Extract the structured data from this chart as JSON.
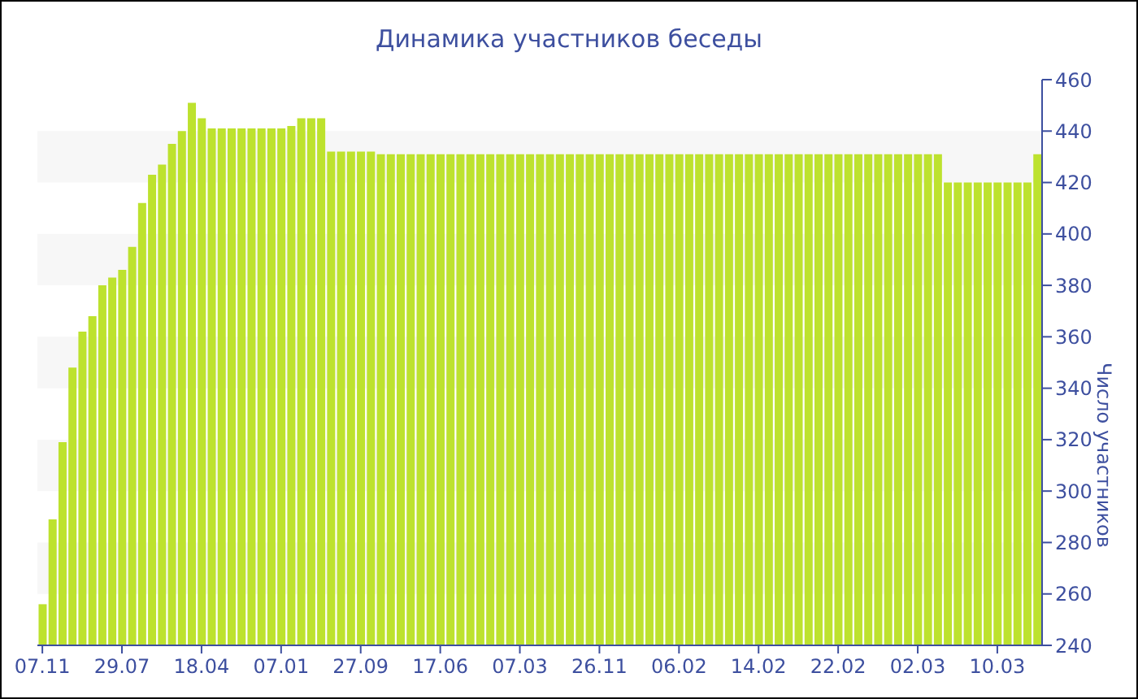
{
  "chart_data": {
    "type": "bar",
    "title": "Динамика участников беседы",
    "ylabel": "Число участников",
    "categories": [
      "07.11",
      null,
      null,
      null,
      null,
      null,
      null,
      null,
      "29.07",
      null,
      null,
      null,
      null,
      null,
      null,
      null,
      "18.04",
      null,
      null,
      null,
      null,
      null,
      null,
      null,
      "07.01",
      null,
      null,
      null,
      null,
      null,
      null,
      null,
      "27.09",
      null,
      null,
      null,
      null,
      null,
      null,
      null,
      "17.06",
      null,
      null,
      null,
      null,
      null,
      null,
      null,
      "07.03",
      null,
      null,
      null,
      null,
      null,
      null,
      null,
      "26.11",
      null,
      null,
      null,
      null,
      null,
      null,
      null,
      "06.02",
      null,
      null,
      null,
      null,
      null,
      null,
      null,
      "14.02",
      null,
      null,
      null,
      null,
      null,
      null,
      null,
      "22.02",
      null,
      null,
      null,
      null,
      null,
      null,
      null,
      "02.03",
      null,
      null,
      null,
      null,
      null,
      null,
      null,
      "10.03",
      null,
      null,
      null,
      null
    ],
    "values": [
      256,
      289,
      319,
      348,
      362,
      368,
      380,
      383,
      386,
      395,
      412,
      423,
      427,
      435,
      440,
      451,
      445,
      441,
      441,
      441,
      441,
      441,
      441,
      441,
      441,
      442,
      445,
      445,
      445,
      432,
      432,
      432,
      432,
      432,
      431,
      431,
      431,
      431,
      431,
      431,
      431,
      431,
      431,
      431,
      431,
      431,
      431,
      431,
      431,
      431,
      431,
      431,
      431,
      431,
      431,
      431,
      431,
      431,
      431,
      431,
      431,
      431,
      431,
      431,
      431,
      431,
      431,
      431,
      431,
      431,
      431,
      431,
      431,
      431,
      431,
      431,
      431,
      431,
      431,
      431,
      431,
      431,
      431,
      431,
      431,
      431,
      431,
      431,
      431,
      431,
      431,
      420,
      420,
      420,
      420,
      420,
      420,
      420,
      420,
      420,
      431
    ],
    "color": "#bde22e",
    "ylim": [
      240,
      460
    ],
    "yticks": [
      240,
      260,
      280,
      300,
      320,
      340,
      360,
      380,
      400,
      420,
      440,
      460
    ],
    "bands": [
      {
        "axis": "y",
        "from": 260,
        "to": 280,
        "color": "#f7f7f7"
      },
      {
        "axis": "y",
        "from": 300,
        "to": 320,
        "color": "#f7f7f7"
      },
      {
        "axis": "y",
        "from": 340,
        "to": 360,
        "color": "#f7f7f7"
      },
      {
        "axis": "y",
        "from": 380,
        "to": 400,
        "color": "#f7f7f7"
      },
      {
        "axis": "y",
        "from": 420,
        "to": 440,
        "color": "#f7f7f7"
      }
    ]
  }
}
